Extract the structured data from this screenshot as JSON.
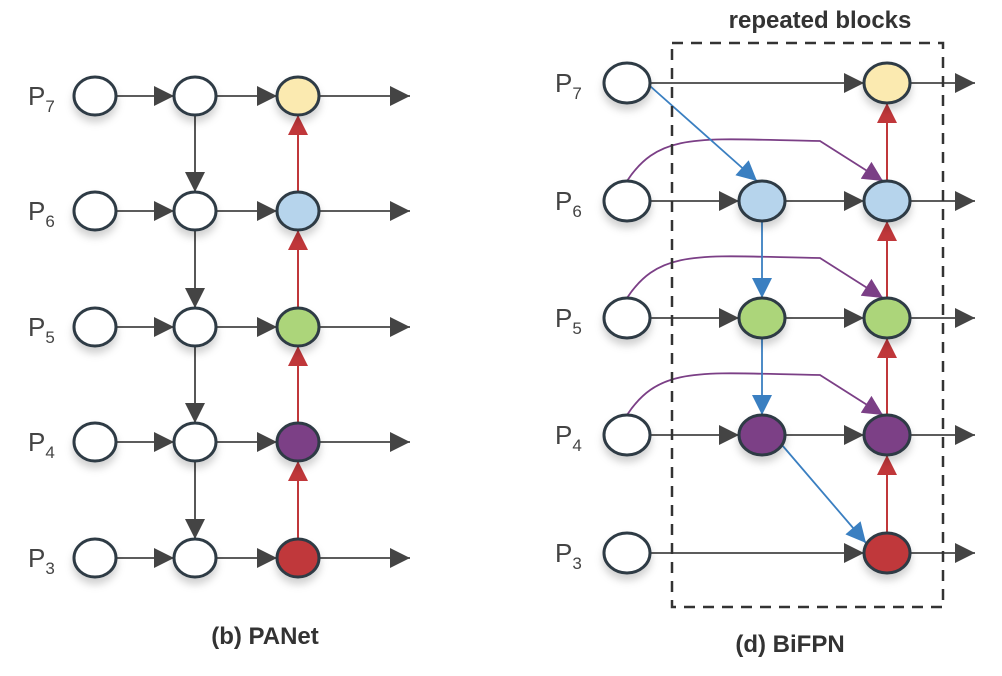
{
  "levels": [
    {
      "base": "P",
      "sub": "7"
    },
    {
      "base": "P",
      "sub": "6"
    },
    {
      "base": "P",
      "sub": "5"
    },
    {
      "base": "P",
      "sub": "4"
    },
    {
      "base": "P",
      "sub": "3"
    }
  ],
  "panet": {
    "caption": "(b) PANet"
  },
  "bifpn": {
    "caption": "(d) BiFPN",
    "box_label": "repeated blocks"
  },
  "colors": {
    "p7": "#fbeab0",
    "p6": "#b6d4ec",
    "p5": "#acd57a",
    "p4": "#7b3f86",
    "p3": "#c0373a",
    "plain": "#ffffff",
    "top_down_bifpn": "#3a7fc1",
    "bottom_up": "#c0373a",
    "skip": "#7b3f86",
    "edge": "#444444"
  }
}
